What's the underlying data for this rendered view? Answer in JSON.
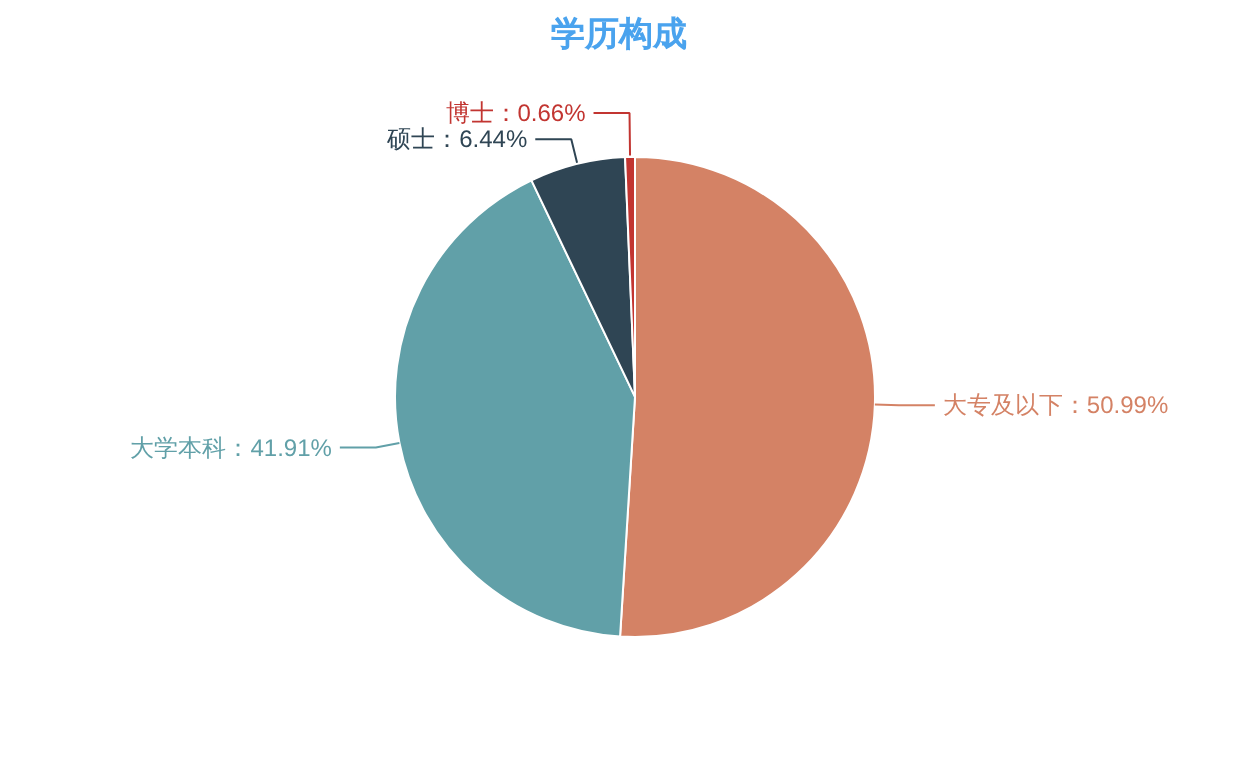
{
  "chart_data": {
    "type": "pie",
    "title": "学历构成",
    "categories": [
      "大专及以下",
      "大学本科",
      "硕士",
      "博士"
    ],
    "values": [
      50.99,
      41.91,
      6.44,
      0.66
    ],
    "colors": [
      "#d48265",
      "#61a0a8",
      "#2f4554",
      "#c23531"
    ],
    "value_labels": [
      "：50.99%",
      "：41.91%",
      "：6.44%",
      "：0.66%"
    ]
  }
}
